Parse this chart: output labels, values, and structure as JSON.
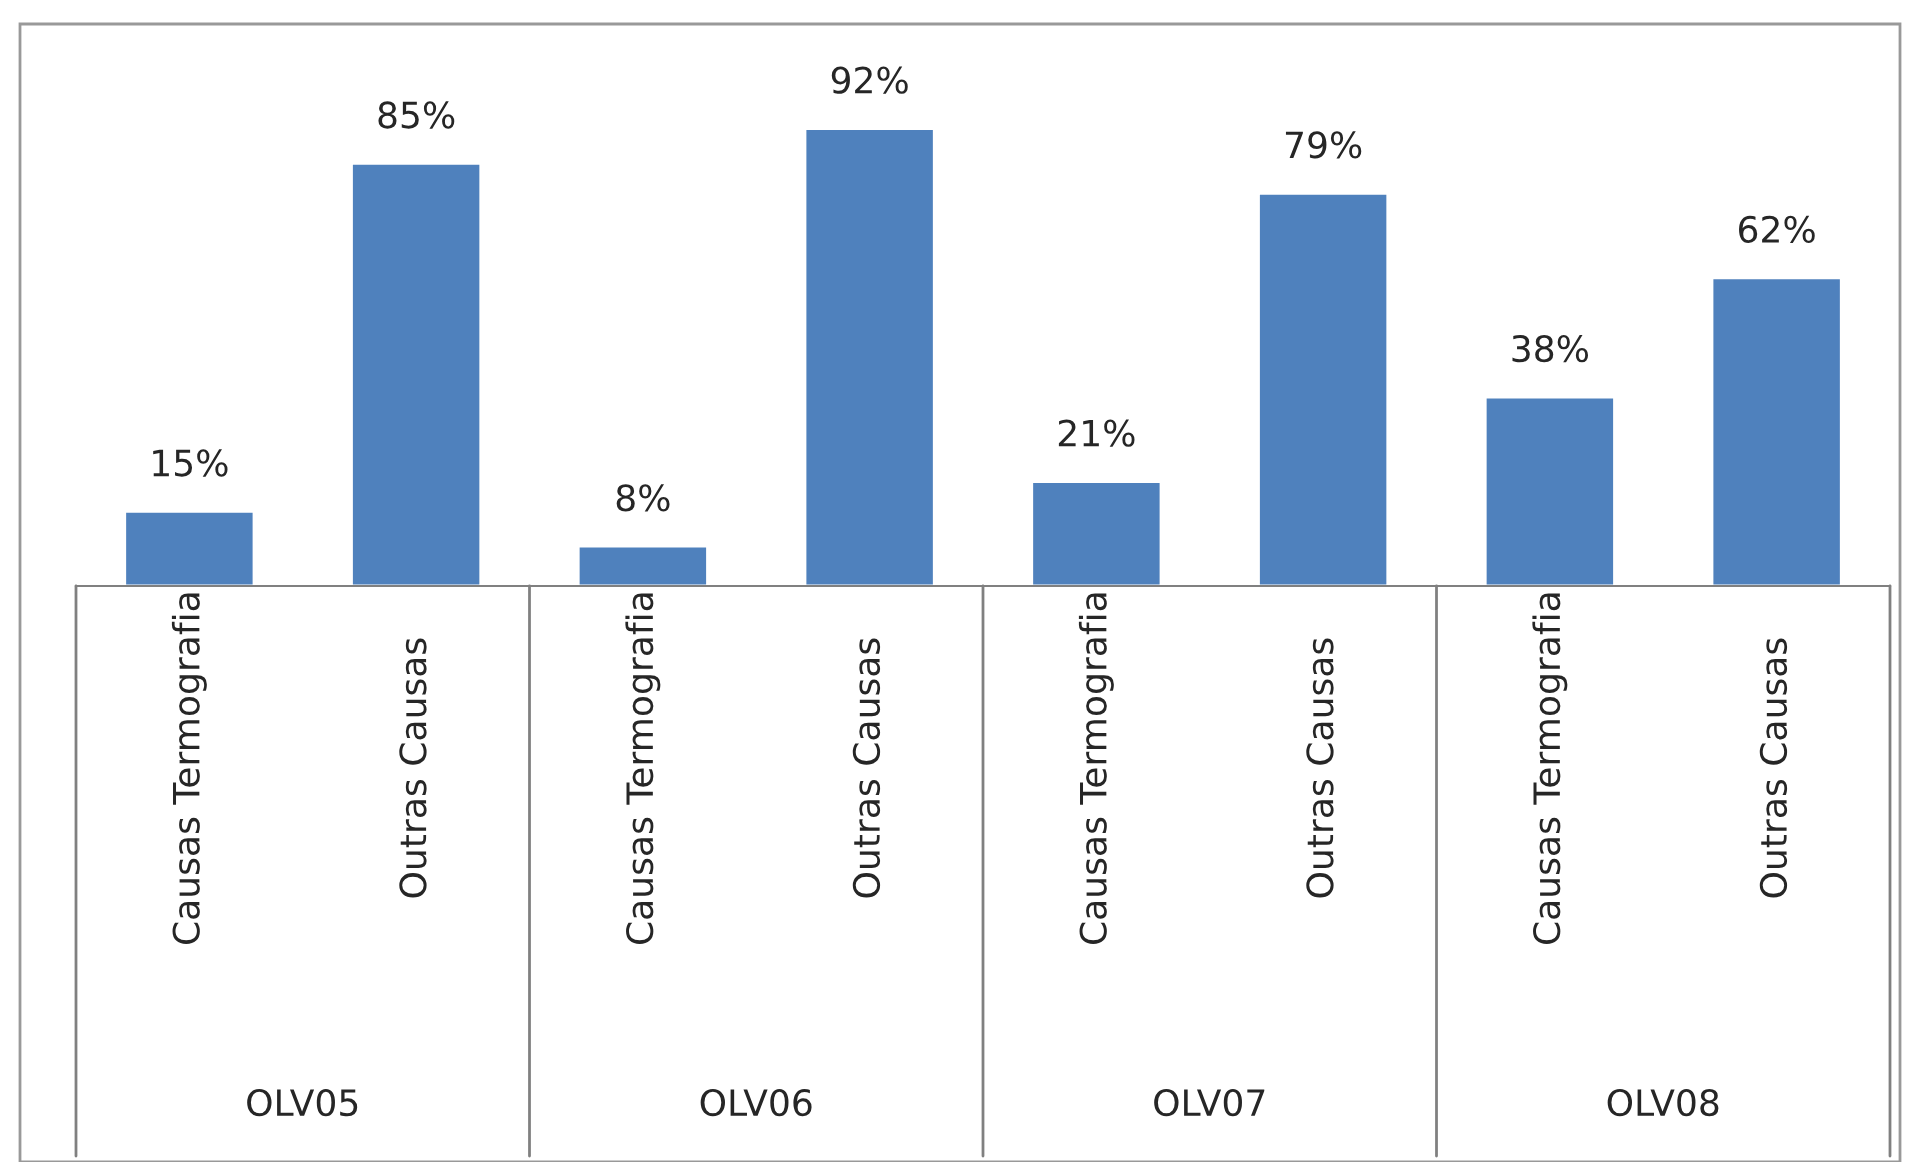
{
  "chart_data": {
    "type": "bar",
    "categories": [
      "Causas Termografia",
      "Outras Causas",
      "Causas Termografia",
      "Outras Causas",
      "Causas Termografia",
      "Outras Causas",
      "Causas Termografia",
      "Outras Causas"
    ],
    "values": [
      15,
      85,
      8,
      92,
      21,
      79,
      38,
      62
    ],
    "color": "#4f81bd",
    "value_labels": [
      "15%",
      "85%",
      "8%",
      "92%",
      "21%",
      "79%",
      "38%",
      "62%"
    ],
    "annotations": [
      "OLV05",
      "OLV06",
      "OLV07",
      "OLV08"
    ]
  }
}
